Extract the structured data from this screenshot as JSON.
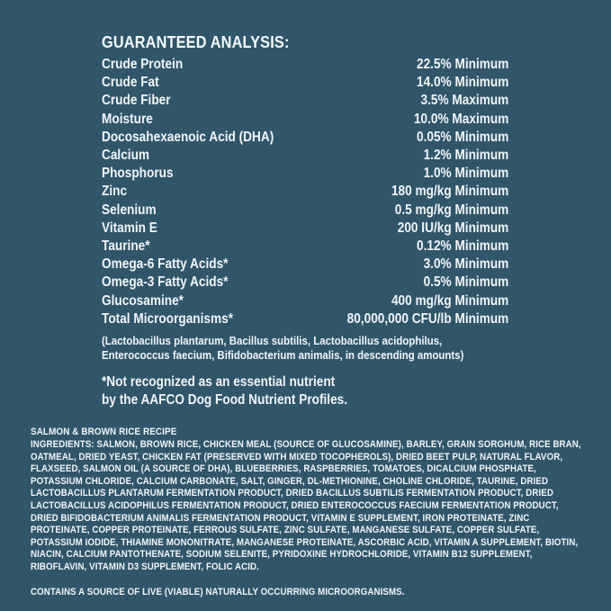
{
  "panel": {
    "background_color": "#30566a",
    "text_color": "#f2f5f6"
  },
  "guaranteed_analysis": {
    "title": "GUARANTEED ANALYSIS:",
    "rows": [
      {
        "label": "Crude Protein",
        "value": "22.5% Minimum"
      },
      {
        "label": "Crude Fat",
        "value": "14.0% Minimum"
      },
      {
        "label": "Crude Fiber",
        "value": "3.5% Maximum"
      },
      {
        "label": "Moisture",
        "value": "10.0% Maximum"
      },
      {
        "label": "Docosahexaenoic Acid (DHA)",
        "value": "0.05% Minimum"
      },
      {
        "label": "Calcium",
        "value": "1.2% Minimum"
      },
      {
        "label": "Phosphorus",
        "value": "1.0% Minimum"
      },
      {
        "label": "Zinc",
        "value": "180 mg/kg Minimum"
      },
      {
        "label": "Selenium",
        "value": "0.5 mg/kg Minimum"
      },
      {
        "label": "Vitamin E",
        "value": "200 IU/kg Minimum"
      },
      {
        "label": "Taurine*",
        "value": "0.12% Minimum"
      },
      {
        "label": "Omega-6 Fatty Acids*",
        "value": "3.0% Minimum"
      },
      {
        "label": "Omega-3 Fatty Acids*",
        "value": "0.5% Minimum"
      },
      {
        "label": "Glucosamine*",
        "value": "400 mg/kg Minimum"
      },
      {
        "label": "Total Microorganisms*",
        "value": "80,000,000 CFU/lb Minimum"
      }
    ],
    "microorganisms_note_line1": "(Lactobacillus plantarum, Bacillus subtilis, Lactobacillus acidophilus,",
    "microorganisms_note_line2": "Enterococcus faecium, Bifidobacterium animalis, in descending amounts)",
    "footnote_line1": "*Not recognized as an essential nutrient",
    "footnote_line2": "by the AAFCO Dog Food Nutrient Profiles."
  },
  "recipe": {
    "name": "SALMON & BROWN RICE RECIPE",
    "ingredients_label": "INGREDIENTS:",
    "ingredients_text": " SALMON, BROWN RICE, CHICKEN MEAL (SOURCE OF GLUCOSAMINE), BARLEY, GRAIN SORGHUM, RICE BRAN, OATMEAL, DRIED YEAST, CHICKEN FAT (PRESERVED WITH MIXED TOCOPHEROLS), DRIED BEET PULP, NATURAL FLAVOR, FLAXSEED, SALMON OIL (A SOURCE OF DHA), BLUEBERRIES, RASPBERRIES, TOMATOES, DICALCIUM PHOSPHATE, POTASSIUM CHLORIDE, CALCIUM CARBONATE, SALT, GINGER, DL-METHIONINE, CHOLINE CHLORIDE, TAURINE, DRIED LACTOBACILLUS PLANTARUM FERMENTATION PRODUCT, DRIED BACILLUS SUBTILIS FERMENTATION PRODUCT, DRIED LACTOBACILLUS ACIDOPHILUS FERMENTATION PRODUCT, DRIED ENTEROCOCCUS FAECIUM FERMENTATION PRODUCT, DRIED BIFIDOBACTERIUM ANIMALIS FERMENTATION PRODUCT, VITAMIN E SUPPLEMENT, IRON PROTEINATE, ZINC PROTEINATE, COPPER PROTEINATE, FERROUS SULFATE, ZINC SULFATE, MANGANESE SULFATE, COPPER SULFATE, POTASSIUM IODIDE, THIAMINE MONONITRATE, MANGANESE PROTEINATE, ASCORBIC ACID, VITAMIN A SUPPLEMENT, BIOTIN, NIACIN, CALCIUM PANTOTHENATE, SODIUM SELENITE, PYRIDOXINE HYDROCHLORIDE, VITAMIN B12 SUPPLEMENT, RIBOFLAVIN, VITAMIN D3 SUPPLEMENT, FOLIC ACID.",
    "contains_note": "CONTAINS A SOURCE OF LIVE (VIABLE) NATURALLY OCCURRING MICROORGANISMS."
  }
}
